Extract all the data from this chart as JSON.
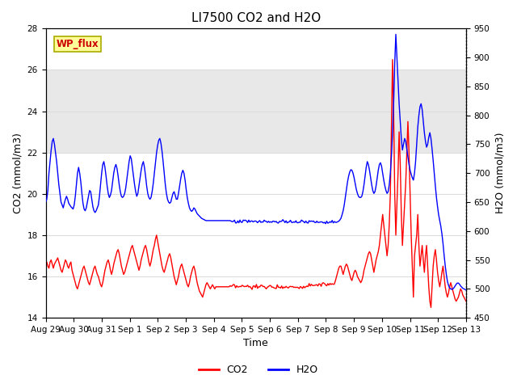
{
  "title": "LI7500 CO2 and H2O",
  "xlabel": "Time",
  "ylabel_left": "CO2 (mmol/m3)",
  "ylabel_right": "H2O (mmol/m3)",
  "ylim_left": [
    14,
    28
  ],
  "ylim_right": [
    450,
    950
  ],
  "yticks_left": [
    14,
    16,
    18,
    20,
    22,
    24,
    26,
    28
  ],
  "yticks_right": [
    450,
    500,
    550,
    600,
    650,
    700,
    750,
    800,
    850,
    900,
    950
  ],
  "xtick_labels": [
    "Aug 29",
    "Aug 30",
    "Aug 31",
    "Sep 1",
    "Sep 2",
    "Sep 3",
    "Sep 4",
    "Sep 5",
    "Sep 6",
    "Sep 7",
    "Sep 8",
    "Sep 9",
    "Sep 10",
    "Sep 11",
    "Sep 12",
    "Sep 13"
  ],
  "co2_color": "#FF0000",
  "h2o_color": "#0000FF",
  "background_color": "#FFFFFF",
  "grid_color": "#DCDCDC",
  "shaded_region": [
    22,
    26
  ],
  "shaded_color": "#E8E8E8",
  "wp_flux_label": "WP_flux",
  "wp_flux_bg": "#FFFF99",
  "wp_flux_border": "#AAAA00",
  "wp_flux_text_color": "#CC0000",
  "title_fontsize": 11,
  "axis_label_fontsize": 9,
  "tick_fontsize": 7.5,
  "legend_fontsize": 9,
  "line_width": 1.0
}
